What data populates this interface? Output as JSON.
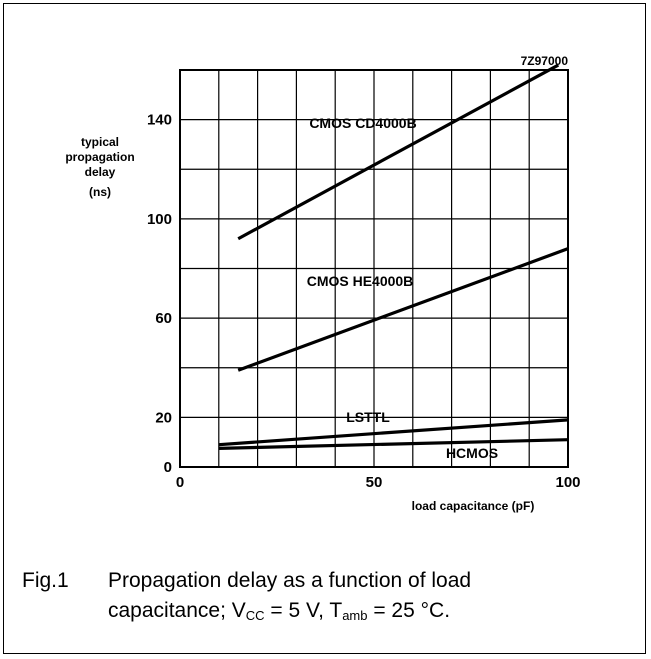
{
  "chart_data": {
    "type": "line",
    "figure_code": "7Z97000",
    "xlabel": "load capacitance (pF)",
    "ylabel_lines": [
      "typical",
      "propagation",
      "delay",
      "(ns)"
    ],
    "xlim": [
      0,
      100
    ],
    "ylim": [
      0,
      160
    ],
    "x_ticks": [
      0,
      50,
      100
    ],
    "y_ticks": [
      0,
      20,
      60,
      100,
      140
    ],
    "grid": true,
    "series": [
      {
        "name": "CMOS CD4000B",
        "x": [
          15,
          97.5
        ],
        "y": [
          92,
          162
        ]
      },
      {
        "name": "CMOS HE4000B",
        "x": [
          15,
          100
        ],
        "y": [
          39,
          88
        ]
      },
      {
        "name": "LSTTL",
        "x": [
          10,
          100
        ],
        "y": [
          9,
          19
        ]
      },
      {
        "name": "HCMOS",
        "x": [
          10,
          100
        ],
        "y": [
          7.5,
          11
        ]
      }
    ]
  },
  "caption": {
    "number": "Fig.1",
    "line1": "Propagation delay as a function of load",
    "line2_pre": "capacitance; V",
    "vcc_sub": "CC",
    "line2_mid": " = 5 V, T",
    "tamb_sub": "amb",
    "line2_post": " = 25 °C."
  }
}
